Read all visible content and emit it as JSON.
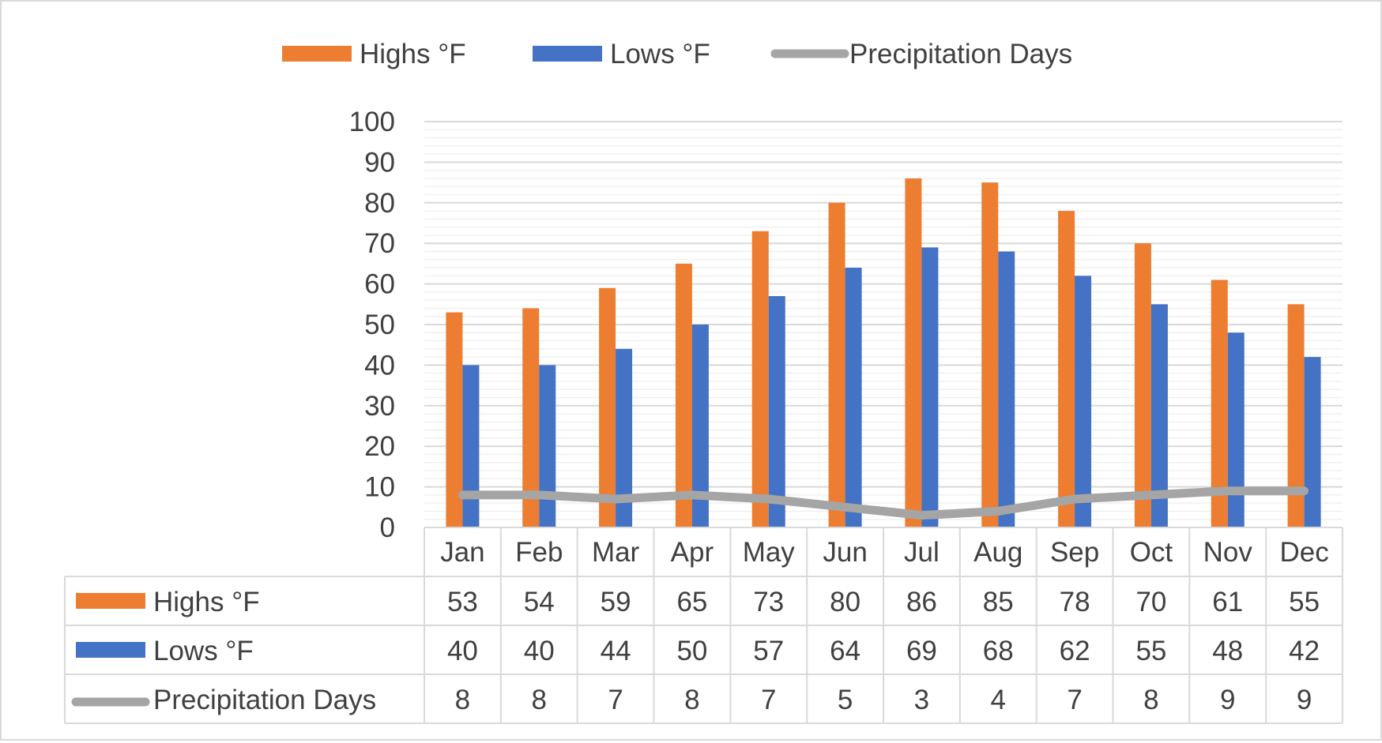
{
  "chart_data": {
    "type": "bar",
    "categories": [
      "Jan",
      "Feb",
      "Mar",
      "Apr",
      "May",
      "Jun",
      "Jul",
      "Aug",
      "Sep",
      "Oct",
      "Nov",
      "Dec"
    ],
    "series": [
      {
        "name": "Highs °F",
        "kind": "bar",
        "color": "#ed7d31",
        "values": [
          53,
          54,
          59,
          65,
          73,
          80,
          86,
          85,
          78,
          70,
          61,
          55
        ]
      },
      {
        "name": "Lows °F",
        "kind": "bar",
        "color": "#4472c4",
        "values": [
          40,
          40,
          44,
          50,
          57,
          64,
          69,
          68,
          62,
          55,
          48,
          42
        ]
      },
      {
        "name": "Precipitation Days",
        "kind": "line",
        "color": "#a5a5a5",
        "values": [
          8,
          8,
          7,
          8,
          7,
          5,
          3,
          4,
          7,
          8,
          9,
          9
        ]
      }
    ],
    "yticks": [
      "0",
      "10",
      "20",
      "30",
      "40",
      "50",
      "60",
      "70",
      "80",
      "90",
      "100"
    ],
    "ylim": [
      0,
      100
    ],
    "minor_grid_step": 2,
    "title": "",
    "xlabel": "",
    "ylabel": "",
    "legend_position": "top",
    "data_table": true,
    "grid": true
  }
}
